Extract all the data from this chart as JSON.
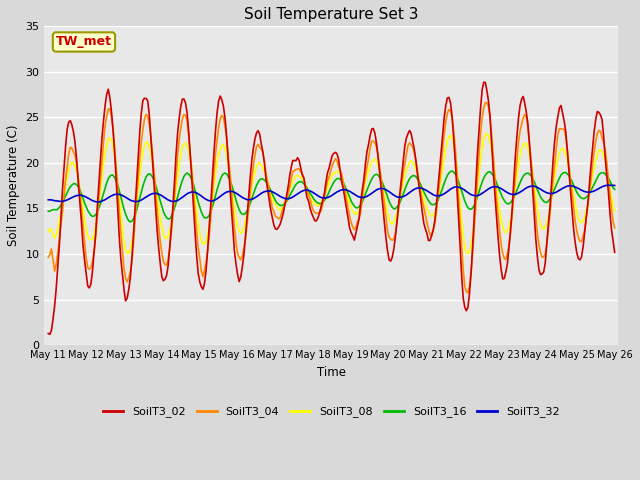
{
  "title": "Soil Temperature Set 3",
  "xlabel": "Time",
  "ylabel": "Soil Temperature (C)",
  "annotation": "TW_met",
  "ylim": [
    0,
    35
  ],
  "series_labels": [
    "SoilT3_02",
    "SoilT3_04",
    "SoilT3_08",
    "SoilT3_16",
    "SoilT3_32"
  ],
  "series_colors": [
    "#cc0000",
    "#ff8800",
    "#ffff00",
    "#00bb00",
    "#0000cc"
  ],
  "fig_bg_color": "#d9d9d9",
  "axes_bg_color": "#e8e8e8",
  "grid_color": "#ffffff",
  "title_fontsize": 11,
  "tick_labels": [
    "May 11",
    "May 12",
    "May 13",
    "May 14",
    "May 15",
    "May 16",
    "May 17",
    "May 18",
    "May 19",
    "May 20",
    "May 21",
    "May 22",
    "May 23",
    "May 24",
    "May 25",
    "May 26"
  ]
}
